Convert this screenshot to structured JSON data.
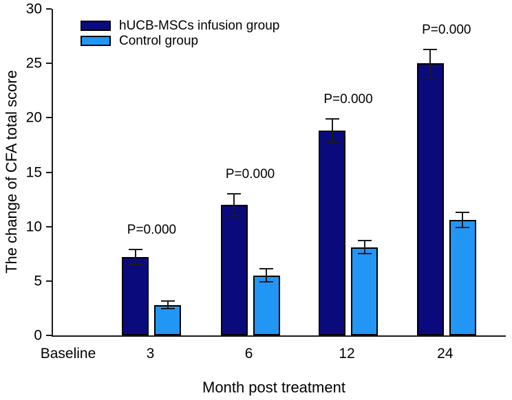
{
  "chart_data": {
    "type": "bar",
    "title": "",
    "xlabel": "Month post treatment",
    "ylabel": "The change of CFA total score",
    "categories": [
      "Baseline",
      "3",
      "6",
      "12",
      "24"
    ],
    "series": [
      {
        "name": "hUCB-MSCs infusion group",
        "color": "#0a0a7d",
        "values": [
          0,
          7.2,
          12.0,
          18.8,
          25.0
        ],
        "errors": [
          0,
          0.7,
          1.0,
          1.1,
          1.3
        ]
      },
      {
        "name": "Control group",
        "color": "#2196f5",
        "values": [
          0,
          2.8,
          5.5,
          8.1,
          10.6
        ],
        "errors": [
          0,
          0.35,
          0.6,
          0.6,
          0.7
        ]
      }
    ],
    "annotations": [
      {
        "category": "3",
        "text": "P=0.000"
      },
      {
        "category": "6",
        "text": "P=0.000"
      },
      {
        "category": "12",
        "text": "P=0.000"
      },
      {
        "category": "24",
        "text": "P=0.000"
      }
    ],
    "ylim": [
      0,
      30
    ],
    "yticks": [
      0,
      5,
      10,
      15,
      20,
      25,
      30
    ],
    "grid": false,
    "legend_position": "top-left-inside",
    "error_bars": "both-caps"
  }
}
